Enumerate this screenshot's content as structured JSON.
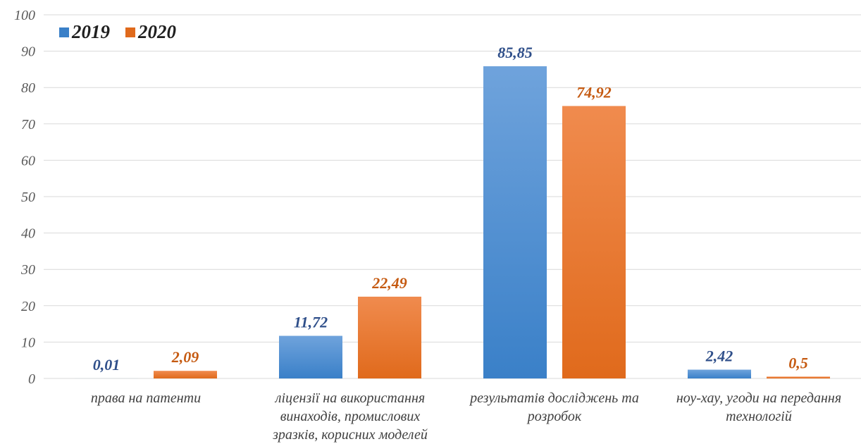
{
  "chart_data": {
    "type": "bar",
    "categories": [
      [
        "права на патенти"
      ],
      [
        "ліцензії на використання",
        "винаходів, промислових",
        "зразків, корисних моделей"
      ],
      [
        "результатів досліджень та",
        "розробок"
      ],
      [
        "ноу-хау, угоди на передання",
        "технологій"
      ]
    ],
    "series": [
      {
        "name": "2019",
        "values": [
          0.01,
          11.72,
          85.85,
          2.42
        ],
        "labels": [
          "0,01",
          "11,72",
          "85,85",
          "2,42"
        ]
      },
      {
        "name": "2020",
        "values": [
          2.09,
          22.49,
          74.92,
          0.5
        ],
        "labels": [
          "2,09",
          "22,49",
          "74,92",
          "0,5"
        ]
      }
    ],
    "ylim": [
      0,
      100
    ],
    "yticks": [
      0,
      10,
      20,
      30,
      40,
      50,
      60,
      70,
      80,
      90,
      100
    ],
    "grid": true,
    "legend": "top-left",
    "colors": {
      "s2019_top": "#6fa3dc",
      "s2019_bottom": "#3a80c8",
      "s2019_label": "#2f4f8a",
      "s2020_top": "#f08b4e",
      "s2020_bottom": "#e06a1c",
      "s2020_label": "#c55a11"
    }
  }
}
